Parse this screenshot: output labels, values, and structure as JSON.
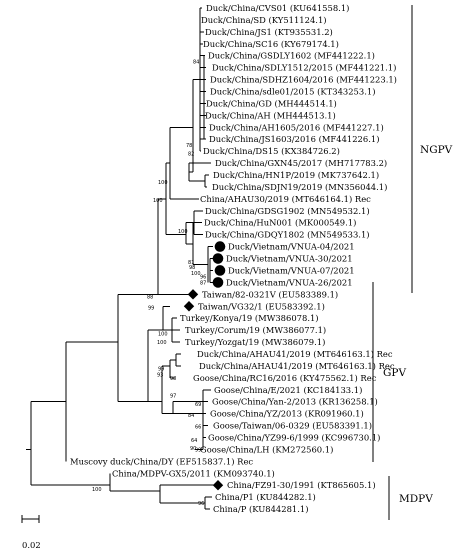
{
  "tree": {
    "leaves": [
      {
        "label": "Duck/China/CVS01 (KU641558.1)",
        "marker": "none"
      },
      {
        "label": "Duck/China/SD (KY511124.1)",
        "marker": "none"
      },
      {
        "label": "Duck/China/JS1 (KT935531.2)",
        "marker": "none"
      },
      {
        "label": "Duck/China/SC16 (KY679174.1)",
        "marker": "none"
      },
      {
        "label": "Duck/China/GSDLY1602 (MF441222.1)",
        "marker": "none"
      },
      {
        "label": "Duck/China/SDLY1512/2015 (MF441221.1)",
        "marker": "none"
      },
      {
        "label": "Duck/China/SDHZ1604/2016 (MF441223.1)",
        "marker": "none"
      },
      {
        "label": "Duck/China/sdle01/2015 (KT343253.1)",
        "marker": "none"
      },
      {
        "label": "Duck/China/GD (MH444514.1)",
        "marker": "none"
      },
      {
        "label": "Duck/China/AH (MH444513.1)",
        "marker": "none"
      },
      {
        "label": "Duck/China/AH1605/2016 (MF441227.1)",
        "marker": "none"
      },
      {
        "label": "Duck/China/JS1603/2016 (MF441226.1)",
        "marker": "none"
      },
      {
        "label": "Duck/China/DS15 (KX384726.2)",
        "marker": "none"
      },
      {
        "label": "Duck/China/GXN45/2017 (MH717783.2)",
        "marker": "none"
      },
      {
        "label": "Duck/China/HN1P/2019 (MK737642.1)",
        "marker": "none"
      },
      {
        "label": "Duck/China/SDJN19/2019 (MN356044.1)",
        "marker": "none"
      },
      {
        "label": "China/AHAU30/2019 (MT646164.1) Rec",
        "marker": "none"
      },
      {
        "label": "Duck/China/GDSG1902 (MN549532.1)",
        "marker": "none"
      },
      {
        "label": "Duck/China/HuN001 (MK000549.1)",
        "marker": "none"
      },
      {
        "label": "Duck/China/GDQY1802 (MN549533.1)",
        "marker": "none"
      },
      {
        "label": "Duck/Vietnam/VNUA-04/2021",
        "marker": "circle"
      },
      {
        "label": "Duck/Vietnam/VNUA-30/2021",
        "marker": "circle"
      },
      {
        "label": "Duck/Vietnam/VNUA-07/2021",
        "marker": "circle"
      },
      {
        "label": "Duck/Vietnam/VNUA-26/2021",
        "marker": "circle"
      },
      {
        "label": "Taiwan/82-0321V (EU583389.1)",
        "marker": "diamond"
      },
      {
        "label": "Taiwan/VG32/1 (EU583392.1)",
        "marker": "diamond"
      },
      {
        "label": "Turkey/Konya/19 (MW386078.1)",
        "marker": "none"
      },
      {
        "label": "Turkey/Corum/19 (MW386077.1)",
        "marker": "none"
      },
      {
        "label": "Turkey/Yozgat/19 (MW386079.1)",
        "marker": "none"
      },
      {
        "label": "Duck/China/AHAU41/2019 (MT646163.1) Rec",
        "marker": "none"
      },
      {
        "label": "Duck/China/AHAU41/2019 (MT646163.1) Rec",
        "marker": "none"
      },
      {
        "label": "Goose/China/RC16/2016 (KY475562.1) Rec",
        "marker": "none"
      },
      {
        "label": "Goose/China/E/2021 (KC184133.1)",
        "marker": "none"
      },
      {
        "label": "Goose/China/Yan-2/2013 (KR136258.1)",
        "marker": "none"
      },
      {
        "label": "Goose/China/YZ/2013 (KR091960.1)",
        "marker": "none"
      },
      {
        "label": "Goose/Taiwan/06-0329 (EU583391.1)",
        "marker": "none"
      },
      {
        "label": "Goose/China/YZ99-6/1999 (KC996730.1)",
        "marker": "none"
      },
      {
        "label": "Goose/China/LH (KM272560.1)",
        "marker": "none"
      },
      {
        "label": "Muscovy duck/China/DY (EF515837.1) Rec",
        "marker": "none"
      },
      {
        "label": "China/MDPV-GX5/2011 (KM093740.1)",
        "marker": "none"
      },
      {
        "label": "China/FZ91-30/1991 (KT865605.1)",
        "marker": "diamond"
      },
      {
        "label": "China/P1 (KU844282.1)",
        "marker": "none"
      },
      {
        "label": "China/P (KU844281.1)",
        "marker": "none"
      }
    ],
    "bootstrap": [
      {
        "value": "84",
        "row": 4.5
      },
      {
        "value": "78",
        "row": 11.5
      },
      {
        "value": "82",
        "row": 12.2
      },
      {
        "value": "100",
        "row": 14.6
      },
      {
        "value": "100",
        "row": 16.1
      },
      {
        "value": "100",
        "row": 18.7
      },
      {
        "value": "81",
        "row": 21.3
      },
      {
        "value": "98",
        "row": 21.7
      },
      {
        "value": "96",
        "row": 22.5
      },
      {
        "value": "87",
        "row": 23.0
      },
      {
        "value": "100",
        "row": 22.2
      },
      {
        "value": "88",
        "row": 24.2
      },
      {
        "value": "99",
        "row": 25.1
      },
      {
        "value": "100",
        "row": 27.3
      },
      {
        "value": "100",
        "row": 28.0
      },
      {
        "value": "99",
        "row": 30.2
      },
      {
        "value": "98",
        "row": 31.0
      },
      {
        "value": "93",
        "row": 30.7
      },
      {
        "value": "97",
        "row": 32.5
      },
      {
        "value": "69",
        "row": 33.2
      },
      {
        "value": "84",
        "row": 34.1
      },
      {
        "value": "66",
        "row": 35.1
      },
      {
        "value": "64",
        "row": 36.2
      },
      {
        "value": "99",
        "row": 37.0
      },
      {
        "value": "90",
        "row": 36.9
      },
      {
        "value": "100",
        "row": 40.3
      },
      {
        "value": "96",
        "row": 41.5
      }
    ],
    "clades": [
      {
        "name": "NGPV",
        "from": 0,
        "to": 24
      },
      {
        "name": "GPV",
        "from": 24,
        "to": 38
      },
      {
        "name": "MDPV",
        "from": 39,
        "to": 42
      }
    ],
    "scale_bar": {
      "label": "0.02"
    }
  }
}
